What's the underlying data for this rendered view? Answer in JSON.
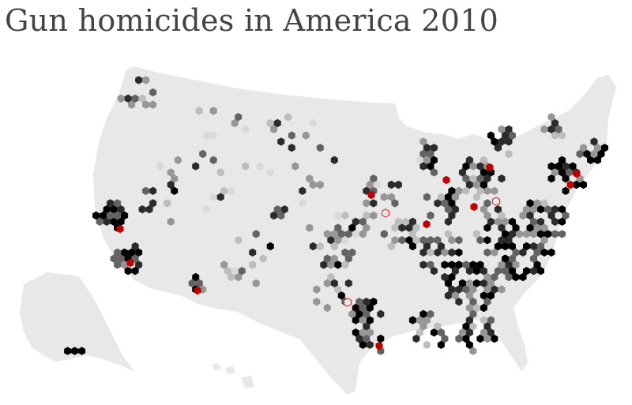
{
  "title": "Gun homicides in America 2010",
  "colors": {
    "land": "#e8e8e8",
    "hex_scale": [
      "#d9d9d9",
      "#bdbdbd",
      "#969696",
      "#636363",
      "#2b2b2b",
      "#000000"
    ],
    "hot": "#c00000",
    "hot_outline": "#e02020",
    "title": "#444444"
  }
}
